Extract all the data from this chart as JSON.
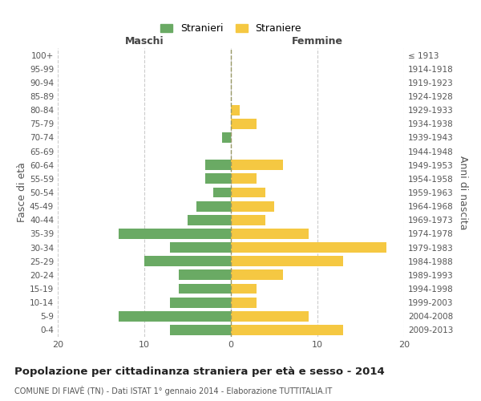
{
  "age_groups": [
    "0-4",
    "5-9",
    "10-14",
    "15-19",
    "20-24",
    "25-29",
    "30-34",
    "35-39",
    "40-44",
    "45-49",
    "50-54",
    "55-59",
    "60-64",
    "65-69",
    "70-74",
    "75-79",
    "80-84",
    "85-89",
    "90-94",
    "95-99",
    "100+"
  ],
  "birth_years": [
    "2009-2013",
    "2004-2008",
    "1999-2003",
    "1994-1998",
    "1989-1993",
    "1984-1988",
    "1979-1983",
    "1974-1978",
    "1969-1973",
    "1964-1968",
    "1959-1963",
    "1954-1958",
    "1949-1953",
    "1944-1948",
    "1939-1943",
    "1934-1938",
    "1929-1933",
    "1924-1928",
    "1919-1923",
    "1914-1918",
    "≤ 1913"
  ],
  "maschi": [
    7,
    13,
    7,
    6,
    6,
    10,
    7,
    13,
    5,
    4,
    2,
    3,
    3,
    0,
    1,
    0,
    0,
    0,
    0,
    0,
    0
  ],
  "femmine": [
    13,
    9,
    3,
    3,
    6,
    13,
    18,
    9,
    4,
    5,
    4,
    3,
    6,
    0,
    0,
    3,
    1,
    0,
    0,
    0,
    0
  ],
  "maschi_color": "#6aaa64",
  "femmine_color": "#f5c842",
  "background_color": "#ffffff",
  "grid_color": "#cccccc",
  "title": "Popolazione per cittadinanza straniera per età e sesso - 2014",
  "subtitle": "COMUNE DI FIAVÈ (TN) - Dati ISTAT 1° gennaio 2014 - Elaborazione TUTTITALIA.IT",
  "ylabel_left": "Fasce di età",
  "ylabel_right": "Anni di nascita",
  "xlabel_left": "Maschi",
  "xlabel_right": "Femmine",
  "xlim": 20,
  "legend_stranieri": "Stranieri",
  "legend_straniere": "Straniere"
}
